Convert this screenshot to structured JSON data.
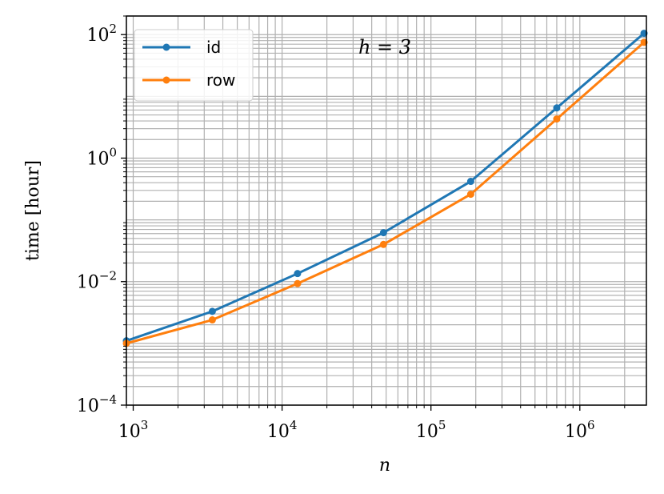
{
  "chart_data": {
    "type": "line",
    "annotation": "h = 3",
    "xlabel": "n",
    "ylabel": "time [hour]",
    "xscale": "log",
    "yscale": "log",
    "xlim": [
      900,
      2800000
    ],
    "ylim": [
      0.0001,
      200
    ],
    "x_ticks": [
      {
        "value": 1000,
        "base": "10",
        "exp": "3"
      },
      {
        "value": 10000,
        "base": "10",
        "exp": "4"
      },
      {
        "value": 100000,
        "base": "10",
        "exp": "5"
      },
      {
        "value": 1000000,
        "base": "10",
        "exp": "6"
      }
    ],
    "y_ticks": [
      {
        "value": 0.0001,
        "base": "10",
        "exp": "−4"
      },
      {
        "value": 0.01,
        "base": "10",
        "exp": "−2"
      },
      {
        "value": 1,
        "base": "10",
        "exp": "0"
      },
      {
        "value": 100,
        "base": "10",
        "exp": "2"
      }
    ],
    "grid": "both",
    "legend_position": "top-left",
    "x": [
      900,
      3400,
      12700,
      48000,
      185000,
      700000,
      2700000
    ],
    "series": [
      {
        "name": "id",
        "color": "#1f77b4",
        "values": [
          0.0011,
          0.0033,
          0.0135,
          0.062,
          0.42,
          6.5,
          105
        ]
      },
      {
        "name": "row",
        "color": "#ff7f0e",
        "values": [
          0.001,
          0.0024,
          0.0093,
          0.04,
          0.26,
          4.3,
          75
        ]
      }
    ]
  }
}
